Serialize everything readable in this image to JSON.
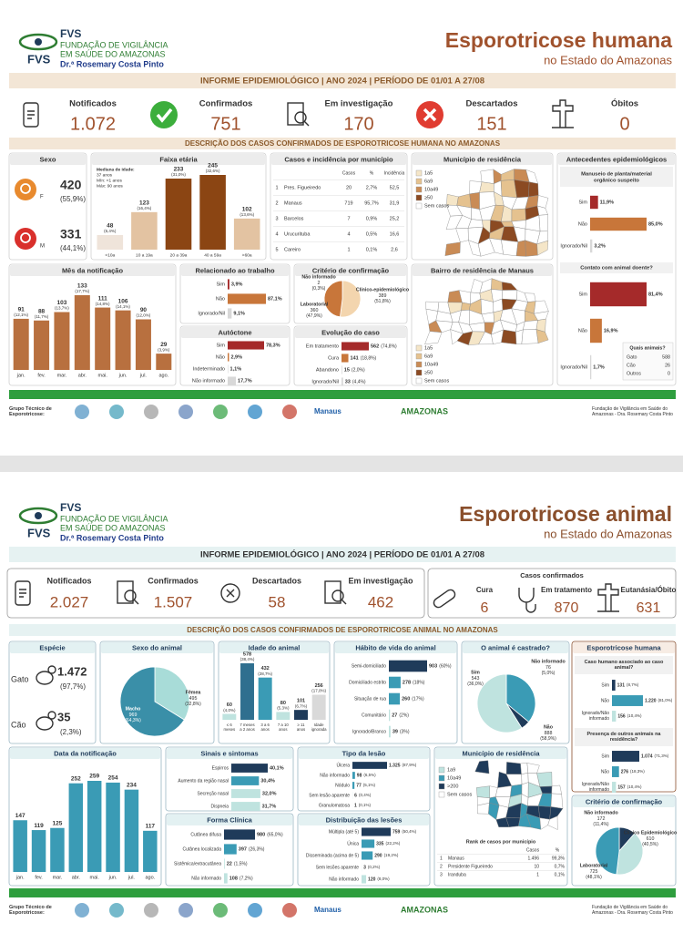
{
  "human": {
    "org": {
      "acronym": "FVS",
      "line1": "FUNDAÇÃO DE VIGILÂNCIA",
      "line2": "EM SAÚDE DO AMAZONAS",
      "person": "Dr.ª Rosemary Costa Pinto"
    },
    "title": "Esporotricose humana",
    "subtitle": "no Estado do Amazonas",
    "banner": "INFORME EPIDEMIOLÓGICO | ANO 2024 | PERÍODO DE 01/01 A 27/08",
    "kpis": [
      {
        "label": "Notificados",
        "value": "1.072"
      },
      {
        "label": "Confirmados",
        "value": "751"
      },
      {
        "label": "Em investigação",
        "value": "170"
      },
      {
        "label": "Descartados",
        "value": "151"
      },
      {
        "label": "Óbitos",
        "value": "0"
      }
    ],
    "section": "DESCRIÇÃO DOS CASOS CONFIRMADOS DE ESPOROTRICOSE HUMANA NO AMAZONAS",
    "sex": {
      "title": "Sexo",
      "items": [
        {
          "label": "F",
          "value": 420,
          "pct": "(55,9%)"
        },
        {
          "label": "M",
          "value": 331,
          "pct": "(44,1%)"
        }
      ]
    },
    "age": {
      "title": "Faixa etária",
      "note": [
        "Mediana de idade:",
        "37 anos",
        "Mín: <1 anos",
        "Máx: 90 anos"
      ],
      "categories": [
        "<10a",
        "10 a 19a",
        "20 a 39a",
        "40 a 59a",
        ">60a"
      ],
      "values": [
        48,
        123,
        233,
        245,
        102
      ],
      "pcts": [
        "(6,4%)",
        "(16,4%)",
        "(31,0%)",
        "(32,6%)",
        "(13,6%)"
      ],
      "colors": [
        "#efe4da",
        "#e3c3a2",
        "#8b4513",
        "#8b4513",
        "#e3c3a2"
      ]
    },
    "municipalities": {
      "title": "Casos e incidência por município",
      "columns": [
        "Casos",
        "%",
        "Incidência"
      ],
      "rows": [
        [
          "1",
          "Pres. Figueiredo",
          "20",
          "2,7%",
          "52,5"
        ],
        [
          "2",
          "Manaus",
          "719",
          "95,7%",
          "31,9"
        ],
        [
          "3",
          "Barcelos",
          "7",
          "0,9%",
          "25,2"
        ],
        [
          "4",
          "Urucurituba",
          "4",
          "0,5%",
          "16,6"
        ],
        [
          "5",
          "Careiro",
          "1",
          "0,1%",
          "2,6"
        ]
      ]
    },
    "residence_map": {
      "title": "Município de residência",
      "legend": [
        {
          "label": "1a5",
          "color": "#f5e6c8"
        },
        {
          "label": "6a9",
          "color": "#e5c28f"
        },
        {
          "label": "10a49",
          "color": "#c98b55"
        },
        {
          "label": "≥50",
          "color": "#8b4a22"
        },
        {
          "label": "Sem casos",
          "color": "#ffffff"
        }
      ]
    },
    "months": {
      "title": "Mês da notificação",
      "categories": [
        "jan.",
        "fev.",
        "mar.",
        "abr.",
        "mai.",
        "jun.",
        "jul.",
        "ago."
      ],
      "values": [
        91,
        88,
        103,
        133,
        111,
        106,
        90,
        29
      ],
      "pcts": [
        "(12,1%)",
        "(11,7%)",
        "(13,7%)",
        "(17,7%)",
        "(14,8%)",
        "(14,1%)",
        "(12,0%)",
        "(3,9%)"
      ],
      "color": "#b8703f"
    },
    "work": {
      "title": "Relacionado ao trabalho",
      "items": [
        {
          "label": "Sim",
          "value": 3.9,
          "value_label": "3,9%",
          "color": "#a52a2a"
        },
        {
          "label": "Não",
          "value": 87.1,
          "value_label": "87,1%",
          "color": "#c8763a"
        },
        {
          "label": "Ignorado/Nil",
          "value": 9.1,
          "value_label": "9,1%",
          "color": "#d8d8d8"
        }
      ]
    },
    "criteria": {
      "title": "Critério de confirmação",
      "items": [
        {
          "label": "Não informado",
          "value": 2,
          "pct": "(0,3%)",
          "color": "#e0a060"
        },
        {
          "label": "Clínico-epidemiológico",
          "value": 389,
          "pct": "(51,8%)",
          "color": "#f3d5ae"
        },
        {
          "label": "Laboratorial",
          "value": 360,
          "pct": "(47,9%)",
          "color": "#c8763a"
        }
      ]
    },
    "autochthonous": {
      "title": "Autóctone",
      "items": [
        {
          "label": "Sim",
          "value": 78.3,
          "value_label": "78,3%",
          "color": "#a52a2a"
        },
        {
          "label": "Não",
          "value": 2.9,
          "value_label": "2,9%",
          "color": "#c8763a"
        },
        {
          "label": "Indeterminado",
          "value": 1.1,
          "value_label": "1,1%",
          "color": "#d8d8d8"
        },
        {
          "label": "Não informado",
          "value": 17.7,
          "value_label": "17,7%",
          "color": "#d8d8d8"
        }
      ]
    },
    "outcome": {
      "title": "Evolução do caso",
      "items": [
        {
          "label": "Em tratamento",
          "value": 562,
          "pct": "(74,8%)",
          "color": "#a52a2a"
        },
        {
          "label": "Cura",
          "value": 141,
          "pct": "(18,8%)",
          "color": "#c8763a"
        },
        {
          "label": "Abandono",
          "value": 15,
          "pct": "(2,0%)",
          "color": "#d8d8d8"
        },
        {
          "label": "Ignorado/Nil",
          "value": 33,
          "pct": "(4,4%)",
          "color": "#d8d8d8"
        }
      ]
    },
    "neighborhood_map": {
      "title": "Bairro de residência de Manaus",
      "legend": [
        {
          "label": "1a5",
          "color": "#f5e6c8"
        },
        {
          "label": "6a9",
          "color": "#e5c28f"
        },
        {
          "label": "10a49",
          "color": "#c98b55"
        },
        {
          "label": "≥50",
          "color": "#8b4a22"
        },
        {
          "label": "Sem casos",
          "color": "#ffffff"
        }
      ]
    },
    "antecedents": {
      "title": "Antecedentes epidemiológicos",
      "plant": {
        "title": "Manuseio de planta/material orgânico suspeito",
        "items": [
          {
            "label": "Sim",
            "value": 11.9,
            "value_label": "11,9%",
            "color": "#a52a2a"
          },
          {
            "label": "Não",
            "value": 85.0,
            "value_label": "85,0%",
            "color": "#c8763a"
          },
          {
            "label": "Ignorado/Nil",
            "value": 3.2,
            "value_label": "3,2%",
            "color": "#d8d8d8"
          }
        ]
      },
      "animal": {
        "title": "Contato com animal doente?",
        "items": [
          {
            "label": "Sim",
            "value": 81.4,
            "value_label": "81,4%",
            "color": "#a52a2a"
          },
          {
            "label": "Não",
            "value": 16.9,
            "value_label": "16,9%",
            "color": "#c8763a"
          },
          {
            "label": "Ignorado/Nil",
            "value": 1.7,
            "value_label": "1,7%",
            "color": "#d8d8d8"
          }
        ]
      },
      "which": {
        "title": "Quais animais?",
        "rows": [
          [
            "Gato",
            "588"
          ],
          [
            "Cão",
            "26"
          ],
          [
            "Outros",
            "0"
          ]
        ]
      }
    },
    "footer": {
      "group": "Grupo Técnico de Esporotricose:",
      "logos": [
        "Manaus",
        "AMAZONAS"
      ],
      "fvs": "Fundação de Vigilância em Saúde do Amazonas - Dra. Rosemary Costa Pinto"
    }
  },
  "animal": {
    "org": {
      "acronym": "FVS",
      "line1": "FUNDAÇÃO DE VIGILÂNCIA",
      "line2": "EM SAÚDE DO AMAZONAS",
      "person": "Dr.ª Rosemary Costa Pinto"
    },
    "title": "Esporotricose animal",
    "subtitle": "no Estado do Amazonas",
    "banner": "INFORME EPIDEMIOLÓGICO | ANO 2024 | PERÍODO DE 01/01 A 27/08",
    "kpis": [
      {
        "label": "Notificados",
        "value": "2.027"
      },
      {
        "label": "Confirmados",
        "value": "1.507"
      },
      {
        "label": "Descartados",
        "value": "58"
      },
      {
        "label": "Em investigação",
        "value": "462"
      }
    ],
    "confirmed": {
      "title": "Casos confirmados",
      "items": [
        {
          "label": "Cura",
          "value": "6"
        },
        {
          "label": "Em tratamento",
          "value": "870"
        },
        {
          "label": "Eutanásia/Óbito",
          "value": "631"
        }
      ]
    },
    "section": "DESCRIÇÃO DOS CASOS CONFIRMADOS DE ESPOROTRICOSE ANIMAL NO AMAZONAS",
    "species": {
      "title": "Espécie",
      "items": [
        {
          "label": "Gato",
          "value": "1.472",
          "pct": "(97,7%)"
        },
        {
          "label": "Cão",
          "value": "35",
          "pct": "(2,3%)"
        }
      ]
    },
    "sex": {
      "title": "Sexo do animal",
      "items": [
        {
          "label": "Fêmea",
          "value": 495,
          "pct": "(32,8%)",
          "color": "#a8dcd8"
        },
        {
          "label": "Macho",
          "value": 969,
          "pct": "(64,3%)",
          "color": "#3a8fa8"
        }
      ]
    },
    "age": {
      "title": "Idade do animal",
      "categories": [
        "≤ 6 meses",
        "7 meses a 2 anos",
        "3 a 6 anos",
        "7 a 10 anos",
        "≥ 11 anos",
        "Idade ignorada"
      ],
      "values": [
        60,
        578,
        432,
        80,
        101,
        256
      ],
      "pcts": [
        "(4,0%)",
        "(38,4%)",
        "(28,7%)",
        "(5,3%)",
        "(6,7%)",
        "(17,0%)"
      ],
      "colors": [
        "#bfe3df",
        "#2f6f8f",
        "#3a9bb5",
        "#bfe3df",
        "#1f3b5a",
        "#d9d9d9"
      ]
    },
    "habit": {
      "title": "Hábito de vida do animal",
      "items": [
        {
          "label": "Semi-domiciliado",
          "value": 903,
          "pct": "(60%)",
          "color": "#1f3b5a"
        },
        {
          "label": "Domiciliado estrito",
          "value": 278,
          "pct": "(18%)",
          "color": "#3a9bb5"
        },
        {
          "label": "Situação de rua",
          "value": 260,
          "pct": "(17%)",
          "color": "#3a9bb5"
        },
        {
          "label": "Comunitário",
          "value": 27,
          "pct": "(2%)",
          "color": "#bfe3df"
        },
        {
          "label": "Ignorado/Branco",
          "value": 39,
          "pct": "(3%)",
          "color": "#bfe3df"
        }
      ]
    },
    "neutered": {
      "title": "O animal é castrado?",
      "items": [
        {
          "label": "Sim",
          "value": 543,
          "pct": "(36,0%)",
          "color": "#3a9bb5"
        },
        {
          "label": "Não informado",
          "value": 76,
          "pct": "(5,0%)",
          "color": "#1f3b5a"
        },
        {
          "label": "Não",
          "value": 888,
          "pct": "(58,9%)",
          "color": "#bfe3df"
        }
      ]
    },
    "months": {
      "title": "Data da notificação",
      "categories": [
        "jan.",
        "fev.",
        "mar.",
        "abr.",
        "mai.",
        "jun.",
        "jul.",
        "ago."
      ],
      "values": [
        147,
        119,
        125,
        252,
        259,
        254,
        234,
        117
      ],
      "color": "#3a9bb5"
    },
    "signs": {
      "title": "Sinais e sintomas",
      "items": [
        {
          "label": "Espirros",
          "value": 40.1,
          "value_label": "40,1%",
          "color": "#1f3b5a"
        },
        {
          "label": "Aumento da região nasal",
          "value": 30.4,
          "value_label": "30,4%",
          "color": "#3a9bb5"
        },
        {
          "label": "Secreção nasal",
          "value": 32.0,
          "value_label": "32,0%",
          "color": "#bfe3df"
        },
        {
          "label": "Dispneia",
          "value": 31.7,
          "value_label": "31,7%",
          "color": "#bfe3df"
        }
      ]
    },
    "clinical": {
      "title": "Forma Clínica",
      "items": [
        {
          "label": "Cutânea difusa",
          "value": 980,
          "pct": "(65,0%)",
          "color": "#1f3b5a"
        },
        {
          "label": "Cutânea localizada",
          "value": 397,
          "pct": "(26,3%)",
          "color": "#3a9bb5"
        },
        {
          "label": "Sistêmica/extracutânea",
          "value": 22,
          "pct": "(1,5%)",
          "color": "#bfe3df"
        },
        {
          "label": "Não informado",
          "value": 108,
          "pct": "(7,2%)",
          "color": "#bfe3df"
        }
      ]
    },
    "lesion": {
      "title": "Tipo da lesão",
      "items": [
        {
          "label": "Úlcera",
          "value": 1325,
          "value_label": "1.325",
          "pct": "(87,9%)",
          "color": "#1f3b5a"
        },
        {
          "label": "Não informado",
          "value": 98,
          "pct": "(6,5%)",
          "color": "#3a9bb5"
        },
        {
          "label": "Nódulo",
          "value": 77,
          "pct": "(5,1%)",
          "color": "#3a9bb5"
        },
        {
          "label": "Sem lesão aparente",
          "value": 6,
          "pct": "(0,4%)",
          "color": "#bfe3df"
        },
        {
          "label": "Granulomatosa",
          "value": 1,
          "pct": "(0,1%)",
          "color": "#bfe3df"
        }
      ]
    },
    "distribution": {
      "title": "Distribuição das lesões",
      "items": [
        {
          "label": "Múltipla (até 5)",
          "value": 759,
          "pct": "(50,4%)",
          "color": "#1f3b5a"
        },
        {
          "label": "Única",
          "value": 335,
          "pct": "(22,2%)",
          "color": "#3a9bb5"
        },
        {
          "label": "Disseminada (acima de 5)",
          "value": 290,
          "pct": "(19,2%)",
          "color": "#3a9bb5"
        },
        {
          "label": "Sem lesões aparente",
          "value": 3,
          "pct": "(0,2%)",
          "color": "#bfe3df"
        },
        {
          "label": "Não informado",
          "value": 120,
          "pct": "(8,0%)",
          "color": "#bfe3df"
        }
      ]
    },
    "residence_map": {
      "title": "Município de residência",
      "legend": [
        {
          "label": "1a9",
          "color": "#bfe3df"
        },
        {
          "label": "10a49",
          "color": "#3a9bb5"
        },
        {
          "label": ">200",
          "color": "#1f3b5a"
        },
        {
          "label": "Sem casos",
          "color": "#ffffff"
        }
      ],
      "rank": {
        "title": "Rank de casos por município",
        "columns": [
          "Casos",
          "%"
        ],
        "rows": [
          [
            "1",
            "Manaus",
            "1.496",
            "99,3%"
          ],
          [
            "2",
            "Presidente Figueiredo",
            "10",
            "0,7%"
          ],
          [
            "3",
            "Iranduba",
            "1",
            "0,1%"
          ]
        ]
      }
    },
    "human_case": {
      "title": "Esporotricose humana",
      "associated": {
        "title": "Caso humano associado ao caso animal?",
        "items": [
          {
            "label": "Sim",
            "value": 131,
            "pct": "(8,7%)",
            "color": "#1f3b5a"
          },
          {
            "label": "Não",
            "value": 1220,
            "value_label": "1.220",
            "pct": "(81,0%)",
            "color": "#3a9bb5"
          },
          {
            "label": "Ignorado/Não informado",
            "value": 156,
            "pct": "(10,4%)",
            "color": "#bfe3df"
          }
        ]
      },
      "others": {
        "title": "Presença de outros animais na residência?",
        "items": [
          {
            "label": "Sim",
            "value": 1074,
            "value_label": "1.074",
            "pct": "(71,3%)",
            "color": "#1f3b5a"
          },
          {
            "label": "Não",
            "value": 276,
            "pct": "(18,3%)",
            "color": "#3a9bb5"
          },
          {
            "label": "Ignorado/Não informado",
            "value": 157,
            "pct": "(10,4%)",
            "color": "#bfe3df"
          }
        ]
      }
    },
    "criteria": {
      "title": "Critério de confirmação",
      "items": [
        {
          "label": "Não informado",
          "value": 172,
          "pct": "(11,4%)",
          "color": "#1f3b5a"
        },
        {
          "label": "Clínico Epidemiológico",
          "value": 610,
          "pct": "(40,5%)",
          "color": "#bfe3df"
        },
        {
          "label": "Laboratorial",
          "value": 725,
          "pct": "(48,1%)",
          "color": "#3a9bb5"
        }
      ]
    },
    "footer": {
      "group": "Grupo Técnico de Esporotricose:",
      "logos": [
        "Manaus",
        "AMAZONAS"
      ],
      "fvs": "Fundação de Vigilância em Saúde do Amazonas - Dra. Rosemary Costa Pinto"
    }
  }
}
